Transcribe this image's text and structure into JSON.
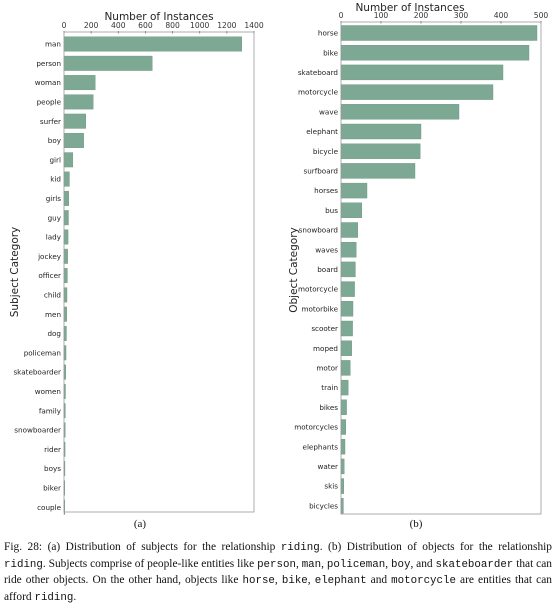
{
  "chart_data": [
    {
      "type": "bar",
      "orientation": "horizontal",
      "panel": "(a)",
      "title": "Number of Instances",
      "xlabel": "Number of Instances",
      "ylabel": "Subject Category",
      "xlim": [
        0,
        1400
      ],
      "xticks": [
        0,
        200,
        400,
        600,
        800,
        1000,
        1200,
        1400
      ],
      "bar_color": "#7da893",
      "categories": [
        "man",
        "person",
        "woman",
        "people",
        "surfer",
        "boy",
        "girl",
        "kid",
        "girls",
        "guy",
        "lady",
        "jockey",
        "officer",
        "child",
        "men",
        "dog",
        "policeman",
        "skateboarder",
        "women",
        "family",
        "snowboarder",
        "rider",
        "boys",
        "biker",
        "couple"
      ],
      "values": [
        1310,
        650,
        230,
        215,
        160,
        145,
        65,
        40,
        35,
        33,
        30,
        27,
        25,
        22,
        20,
        18,
        15,
        13,
        11,
        10,
        9,
        8,
        7,
        6,
        5
      ]
    },
    {
      "type": "bar",
      "orientation": "horizontal",
      "panel": "(b)",
      "title": "Number of Instances",
      "xlabel": "Number of Instances",
      "ylabel": "Object Category",
      "xlim": [
        0,
        500
      ],
      "xticks": [
        0,
        100,
        200,
        300,
        400,
        500
      ],
      "bar_color": "#7da893",
      "categories": [
        "horse",
        "bike",
        "skateboard",
        "motorcycle",
        "wave",
        "elephant",
        "bicycle",
        "surfboard",
        "horses",
        "bus",
        "snowboard",
        "waves",
        "board",
        "motorcycle",
        "motorbike",
        "scooter",
        "moped",
        "motor",
        "train",
        "bikes",
        "motorcycles",
        "elephants",
        "water",
        "skis",
        "bicycles"
      ],
      "values": [
        490,
        470,
        405,
        380,
        295,
        200,
        198,
        185,
        65,
        52,
        42,
        38,
        36,
        34,
        30,
        29,
        27,
        23,
        18,
        14,
        12,
        10,
        8,
        7,
        6
      ]
    }
  ],
  "caption": {
    "t1": "Fig. 28: (a) Distribution of subjects for the relationship ",
    "m1": "riding",
    "t2": ". (b) Distribution of objects for the relationship ",
    "m2": "riding",
    "t3": ". Subjects comprise of people-like entities like ",
    "m3": "person",
    "t4": ", ",
    "m4": "man",
    "t5": ", ",
    "m5": "policeman",
    "t6": ", ",
    "m6": "boy",
    "t7": ", and ",
    "m7": "skateboarder",
    "t8": " that can ride other objects. On the other hand, objects like ",
    "m8": "horse",
    "t9": ", ",
    "m9": "bike",
    "t10": ", ",
    "m10": "elephant",
    "t11": " and ",
    "m11": "motorcycle",
    "t12": " are entities that can afford ",
    "m12": "riding",
    "t13": "."
  }
}
